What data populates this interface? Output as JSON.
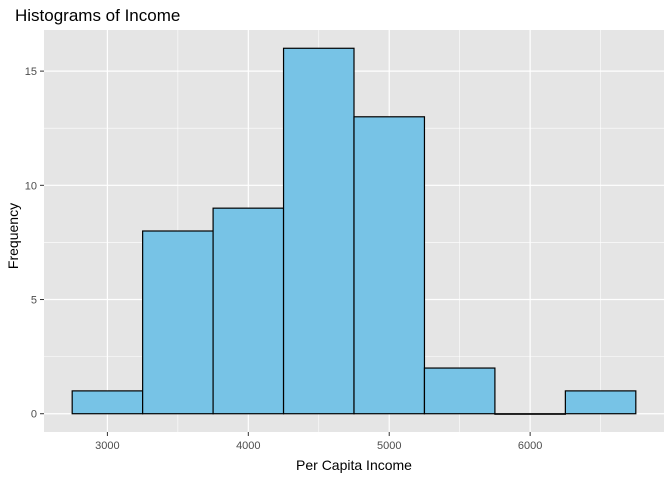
{
  "chart_data": {
    "type": "bar",
    "subtype": "histogram",
    "title": "Histograms of Income",
    "xlabel": "Per Capita Income",
    "ylabel": "Frequency",
    "bins": [
      {
        "start": 2750,
        "end": 3250,
        "count": 1
      },
      {
        "start": 3250,
        "end": 3750,
        "count": 8
      },
      {
        "start": 3750,
        "end": 4250,
        "count": 9
      },
      {
        "start": 4250,
        "end": 4750,
        "count": 16
      },
      {
        "start": 4750,
        "end": 5250,
        "count": 13
      },
      {
        "start": 5250,
        "end": 5750,
        "count": 2
      },
      {
        "start": 5750,
        "end": 6250,
        "count": 0
      },
      {
        "start": 6250,
        "end": 6750,
        "count": 1
      }
    ],
    "xlim": [
      2550,
      6950
    ],
    "ylim": [
      -0.8,
      16.8
    ],
    "x_ticks": [
      3000,
      4000,
      5000,
      6000
    ],
    "x_minor_ticks": [
      3500,
      4500,
      5500,
      6500
    ],
    "y_ticks": [
      0,
      5,
      10,
      15
    ],
    "y_minor_ticks": [
      2.5,
      7.5,
      12.5
    ],
    "grid": true,
    "bar_fill": "#77c3e6",
    "bar_stroke": "#000000",
    "panel_background": "#e5e5e5",
    "grid_color": "#ffffff"
  }
}
